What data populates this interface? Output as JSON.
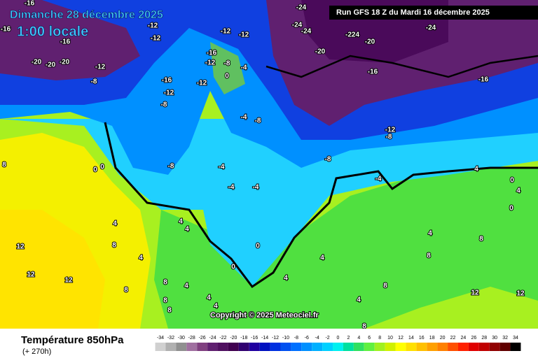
{
  "header": {
    "title": "Dimanche 28 décembre 2025",
    "time": "1:00 locale",
    "run": "Run GFS 18 Z du Mardi 16 décembre 2025"
  },
  "copyright": "Copyright © 2025 Meteociel.fr",
  "footer": {
    "variable": "Température 850hPa",
    "lead": "(+ 270h)"
  },
  "scale": {
    "values": [
      -34,
      -32,
      -30,
      -28,
      -26,
      -24,
      -22,
      -20,
      -18,
      -16,
      -14,
      -12,
      -10,
      -8,
      -6,
      -4,
      -2,
      0,
      2,
      4,
      6,
      8,
      10,
      12,
      14,
      16,
      18,
      20,
      22,
      24,
      26,
      28,
      30,
      32,
      34
    ],
    "colors": [
      "#d0d0d0",
      "#b0b0b0",
      "#909090",
      "#a070a0",
      "#804080",
      "#602070",
      "#501060",
      "#400050",
      "#300070",
      "#2000a0",
      "#0010c0",
      "#0030e0",
      "#0050f0",
      "#0070ff",
      "#0090ff",
      "#00b0ff",
      "#00d0ff",
      "#00f0f0",
      "#00e0a0",
      "#30e060",
      "#60f040",
      "#a0f020",
      "#d0f000",
      "#ffff00",
      "#ffe000",
      "#ffc000",
      "#ffa000",
      "#ff8000",
      "#ff5000",
      "#ff2000",
      "#e00000",
      "#c00000",
      "#900000",
      "#600000",
      "#000000"
    ]
  },
  "map": {
    "labels": [
      -16,
      -16,
      -16,
      -12,
      -12,
      -20,
      -20,
      -20,
      -12,
      -8,
      -16,
      -12,
      -8,
      -12,
      -16,
      -12,
      -8,
      0,
      -4,
      -12,
      -12,
      -24,
      -24,
      -24,
      -224,
      -20,
      -24,
      -20,
      -16,
      -16,
      -12,
      -8,
      -8,
      -4,
      -8,
      0,
      0,
      -8,
      -4,
      -4,
      -4,
      -4,
      4,
      0,
      4,
      4,
      4,
      0,
      0,
      12,
      12,
      12,
      8,
      4,
      8,
      4,
      8,
      8,
      8,
      4,
      4,
      4,
      4,
      4,
      8,
      8,
      8,
      12,
      12,
      0,
      4,
      8,
      4,
      8
    ]
  }
}
